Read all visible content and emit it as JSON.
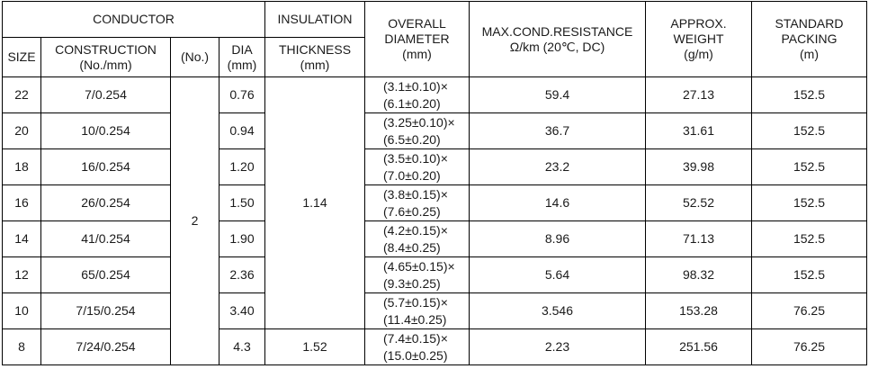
{
  "header": {
    "conductor": "CONDUCTOR",
    "size": "SIZE",
    "construction": [
      "CONSTRUCTION",
      "(No./mm)"
    ],
    "number": "(No.)",
    "dia": [
      "DIA",
      "(mm)"
    ],
    "insulation": "INSULATION",
    "thickness": [
      "THICKNESS",
      "(mm)"
    ],
    "overall_diameter": [
      "OVERALL",
      "DIAMETER",
      "(mm)"
    ],
    "resistance": [
      "MAX.COND.RESISTANCE",
      "Ω/km (20℃,  DC)"
    ],
    "weight": [
      "APPROX.",
      "WEIGHT",
      "(g/m)"
    ],
    "packing": [
      "STANDARD",
      "PACKING",
      "(m)"
    ]
  },
  "number_of_cores": "2",
  "thickness": [
    "1.14",
    "1.52"
  ],
  "rows": [
    {
      "size": "22",
      "construction": "7/0.254",
      "dia": "0.76",
      "overall_diameter": [
        "(3.1±0.10)×",
        "(6.1±0.20)"
      ],
      "resistance": "59.4",
      "weight": "27.13",
      "packing": "152.5"
    },
    {
      "size": "20",
      "construction": "10/0.254",
      "dia": "0.94",
      "overall_diameter": [
        "(3.25±0.10)×",
        "(6.5±0.20)"
      ],
      "resistance": "36.7",
      "weight": "31.61",
      "packing": "152.5"
    },
    {
      "size": "18",
      "construction": "16/0.254",
      "dia": "1.20",
      "overall_diameter": [
        "(3.5±0.10)×",
        "(7.0±0.20)"
      ],
      "resistance": "23.2",
      "weight": "39.98",
      "packing": "152.5"
    },
    {
      "size": "16",
      "construction": "26/0.254",
      "dia": "1.50",
      "overall_diameter": [
        "(3.8±0.15)×",
        "(7.6±0.25)"
      ],
      "resistance": "14.6",
      "weight": "52.52",
      "packing": "152.5"
    },
    {
      "size": "14",
      "construction": "41/0.254",
      "dia": "1.90",
      "overall_diameter": [
        "(4.2±0.15)×",
        "(8.4±0.25)"
      ],
      "resistance": "8.96",
      "weight": "71.13",
      "packing": "152.5"
    },
    {
      "size": "12",
      "construction": "65/0.254",
      "dia": "2.36",
      "overall_diameter": [
        "(4.65±0.15)×",
        "(9.3±0.25)"
      ],
      "resistance": "5.64",
      "weight": "98.32",
      "packing": "152.5"
    },
    {
      "size": "10",
      "construction": "7/15/0.254",
      "dia": "3.40",
      "overall_diameter": [
        "(5.7±0.15)×",
        "(11.4±0.25)"
      ],
      "resistance": "3.546",
      "weight": "153.28",
      "packing": "76.25"
    },
    {
      "size": "8",
      "construction": "7/24/0.254",
      "dia": "4.3",
      "overall_diameter": [
        "(7.4±0.15)×",
        "(15.0±0.25)"
      ],
      "resistance": "2.23",
      "weight": "251.56",
      "packing": "76.25"
    }
  ]
}
